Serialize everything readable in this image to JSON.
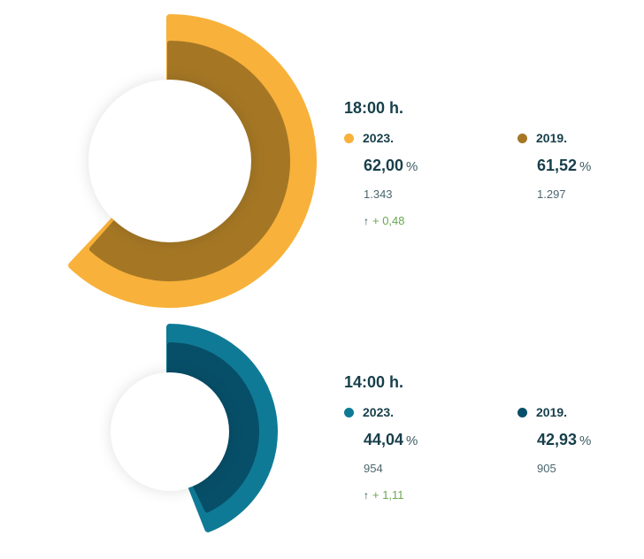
{
  "chart_data": [
    {
      "type": "radial-bar",
      "title": "18:00 h.",
      "series": [
        {
          "name": "2023.",
          "value": 62.0,
          "count": "1.343",
          "color": "#f8b13a"
        },
        {
          "name": "2019.",
          "value": 61.52,
          "count": "1.297",
          "color": "#a57725"
        }
      ],
      "value_format": {
        "percent_display": "62,00",
        "compare_display": "61,52",
        "unit": "%"
      },
      "change": "+ 0,48",
      "change_direction": "up",
      "change_color": "#6aa84f"
    },
    {
      "type": "radial-bar",
      "title": "14:00 h.",
      "series": [
        {
          "name": "2023.",
          "value": 44.04,
          "count": "954",
          "color": "#0f7a96"
        },
        {
          "name": "2019.",
          "value": 42.93,
          "count": "905",
          "color": "#074f68"
        }
      ],
      "value_format": {
        "percent_display": "44,04",
        "compare_display": "42,93",
        "unit": "%"
      },
      "change": "+ 1,11",
      "change_direction": "up",
      "change_color": "#6aa84f"
    }
  ],
  "blocks": [
    {
      "title": "18:00 h.",
      "left": {
        "year": "2023.",
        "pct": "62,00",
        "unit": "%",
        "count": "1.343",
        "change": "+ 0,48",
        "arrow": "↑"
      },
      "right": {
        "year": "2019.",
        "pct": "61,52",
        "unit": "%",
        "count": "1.297"
      }
    },
    {
      "title": "14:00 h.",
      "left": {
        "year": "2023.",
        "pct": "44,04",
        "unit": "%",
        "count": "954",
        "change": "+ 1,11",
        "arrow": "↑"
      },
      "right": {
        "year": "2019.",
        "pct": "42,93",
        "unit": "%",
        "count": "905"
      }
    }
  ]
}
